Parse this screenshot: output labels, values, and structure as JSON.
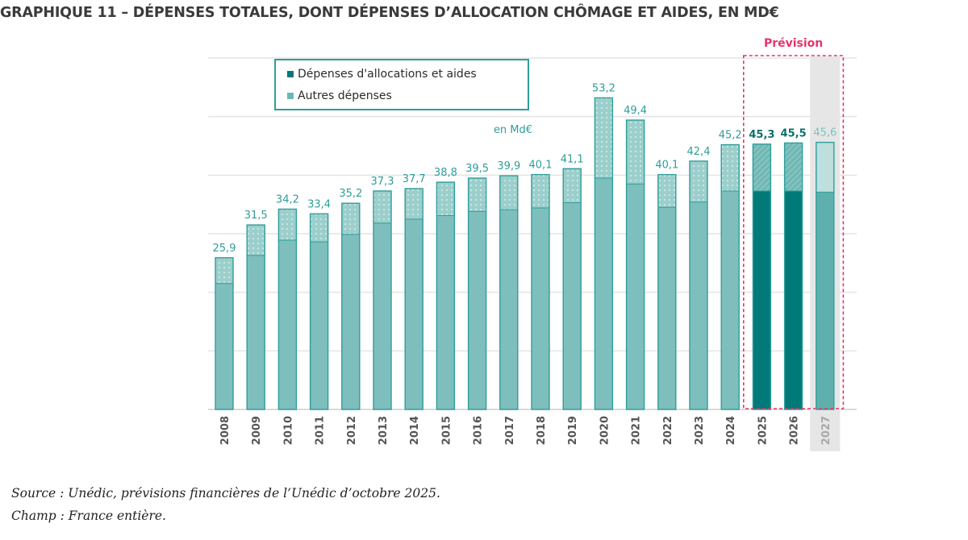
{
  "title": "GRAPHIQUE 11 – DÉPENSES TOTALES, DONT DÉPENSES D’ALLOCATION CHÔMAGE ET AIDES, EN MD€",
  "colors": {
    "allocations": "#7ebfbd",
    "allocations_forecast": "#007a78",
    "allocations_2027": "#5fb0ad",
    "autres": "#a9d5d3",
    "autres_2027": "#bddfdd",
    "outline": "#2e9e9a",
    "grid": "#e4e4e4",
    "forecast_box": "#e6336a",
    "label": "#2e9e9a",
    "label_forecast": "#0e6f6d",
    "shade_2027": "#e6e6e6"
  },
  "chart_data": {
    "type": "bar",
    "stacked": true,
    "title": "GRAPHIQUE 11 – DÉPENSES TOTALES, DONT DÉPENSES D’ALLOCATION CHÔMAGE ET AIDES, EN MD€",
    "unit_label": "en Md€",
    "categories": [
      "2008",
      "2009",
      "2010",
      "2011",
      "2012",
      "2013",
      "2014",
      "2015",
      "2016",
      "2017",
      "2018",
      "2019",
      "2020",
      "2021",
      "2022",
      "2023",
      "2024",
      "2025",
      "2026",
      "2027"
    ],
    "series": [
      {
        "name": "Dépenses d'allocations et aides",
        "values": [
          21.5,
          26.3,
          28.9,
          28.6,
          29.9,
          31.8,
          32.5,
          33.1,
          33.8,
          34.1,
          34.4,
          35.3,
          39.5,
          38.5,
          34.5,
          35.4,
          37.3,
          37.3,
          37.3,
          37.1
        ]
      },
      {
        "name": "Autres dépenses",
        "values": [
          4.4,
          5.2,
          5.3,
          4.8,
          5.3,
          5.5,
          5.2,
          5.7,
          5.7,
          5.8,
          5.7,
          5.8,
          13.7,
          10.9,
          5.6,
          7.0,
          7.9,
          8.0,
          8.2,
          8.5
        ]
      }
    ],
    "totals": [
      25.9,
      31.5,
      34.2,
      33.4,
      35.2,
      37.3,
      37.7,
      38.8,
      39.5,
      39.9,
      40.1,
      41.1,
      53.2,
      49.4,
      40.1,
      42.4,
      45.2,
      45.3,
      45.5,
      45.6
    ],
    "total_labels": [
      "25,9",
      "31,5",
      "34,2",
      "33,4",
      "35,2",
      "37,3",
      "37,7",
      "38,8",
      "39,5",
      "39,9",
      "40,1",
      "41,1",
      "53,2",
      "49,4",
      "40,1",
      "42,4",
      "45,2",
      "45,3",
      "45,5",
      "45,6"
    ],
    "forecast_label": "Prévision",
    "forecast_categories": [
      "2025",
      "2026",
      "2027"
    ],
    "ylim": [
      0,
      60
    ],
    "grid": true,
    "legend": "top-left"
  },
  "source": "Source : Unédic, prévisions financières de l’Unédic d’octobre 2025.",
  "champ": "Champ : France entière."
}
